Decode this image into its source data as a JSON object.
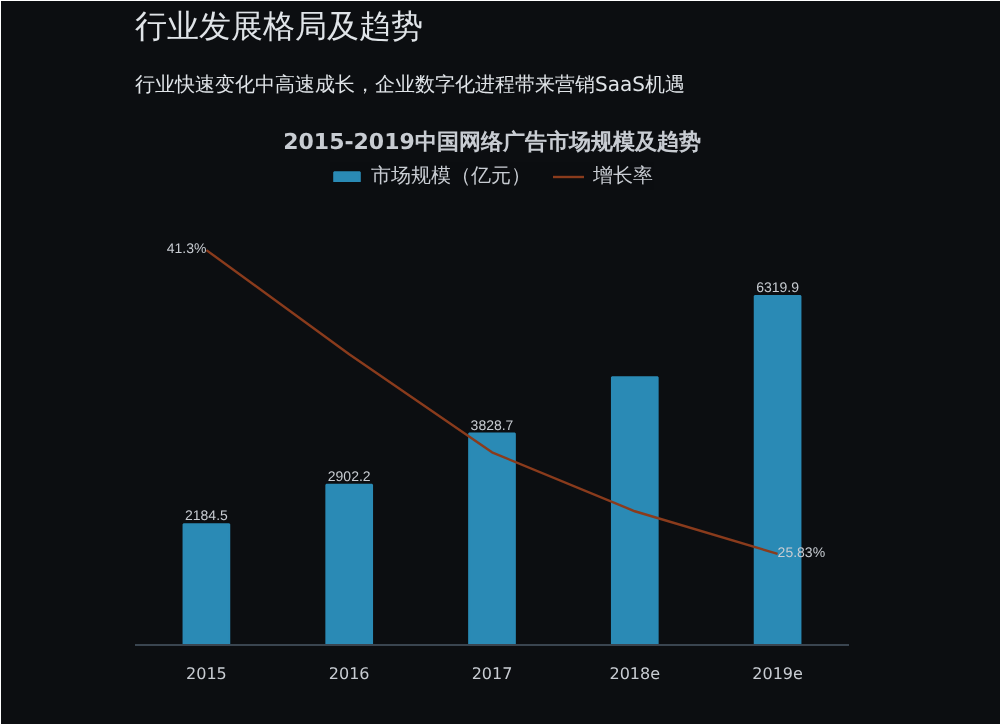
{
  "chart_data": {
    "type": "bar",
    "title": "2015-2019中国网络广告市场规模及趋势",
    "annotations": [
      "行业发展格局及趋势",
      "行业快速变化中高速成长，企业数字化进程带来营销SaaS机遇"
    ],
    "categories": [
      "2015",
      "2016",
      "2017",
      "2018e",
      "2019e"
    ],
    "series": [
      {
        "name": "市场规模（亿元）",
        "color": "#2a8ab5",
        "values": [
          2184.5,
          2902.2,
          3828.7,
          4850,
          6319.9
        ],
        "value_labels": [
          "2184.5",
          "2902.2",
          "3828.7",
          null,
          "6319.9"
        ]
      },
      {
        "name": "增长率",
        "type": "line",
        "axis": "y2",
        "color": "#8a3b1c",
        "values": [
          41.3,
          36,
          31,
          28,
          25.83
        ],
        "value_labels": [
          "41.3%",
          null,
          null,
          null,
          "25.83%"
        ]
      }
    ],
    "ylim": [
      0,
      8800
    ],
    "tick_labels": "x",
    "legend": "top"
  }
}
